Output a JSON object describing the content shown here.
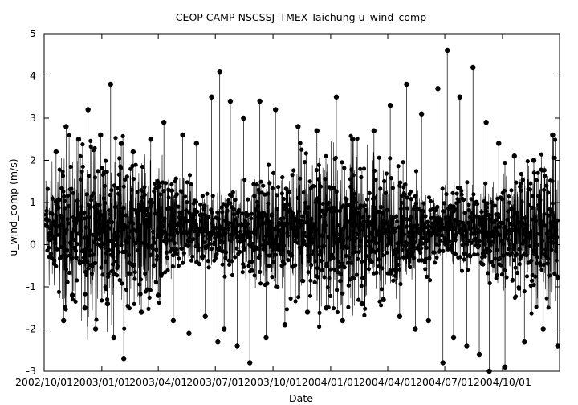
{
  "chart_data": {
    "type": "line",
    "title": "CEOP CAMP-NSCSSJ_TMEX Taichung  u_wind_comp",
    "xlabel": "Date",
    "ylabel": "u_wind_comp (m/s)",
    "ylim": [
      -3,
      5
    ],
    "xlim": [
      "2002-10-01",
      "2004-12-31"
    ],
    "y_ticks": [
      "-3",
      "-2",
      "-1",
      "0",
      "1",
      "2",
      "3",
      "4",
      "5"
    ],
    "x_ticks": [
      {
        "date": "2002-10-01",
        "label": "2002/10/01"
      },
      {
        "date": "2003-01-01",
        "label": "2003/01/01"
      },
      {
        "date": "2003-04-01",
        "label": "2003/04/01"
      },
      {
        "date": "2003-07-01",
        "label": "2003/07/01"
      },
      {
        "date": "2003-10-01",
        "label": "2003/10/01"
      },
      {
        "date": "2004-01-01",
        "label": "2004/01/01"
      },
      {
        "date": "2004-04-01",
        "label": "2004/04/01"
      },
      {
        "date": "2004-07-01",
        "label": "2004/07/01"
      },
      {
        "date": "2004-10-01",
        "label": "2004/10/01"
      }
    ],
    "grid": false,
    "marker": "filled-circle",
    "series": [
      {
        "color": "#000000",
        "points": [
          [
            "2002-10-05",
            0.6
          ],
          [
            "2002-10-20",
            2.2
          ],
          [
            "2002-11-01",
            -1.8
          ],
          [
            "2002-11-05",
            2.8
          ],
          [
            "2002-11-15",
            -1.2
          ],
          [
            "2002-11-25",
            2.5
          ],
          [
            "2002-12-05",
            -1.5
          ],
          [
            "2002-12-10",
            3.2
          ],
          [
            "2002-12-22",
            -2.0
          ],
          [
            "2002-12-30",
            2.6
          ],
          [
            "2003-01-10",
            -1.4
          ],
          [
            "2003-01-15",
            3.8
          ],
          [
            "2003-01-20",
            -2.2
          ],
          [
            "2003-02-01",
            2.4
          ],
          [
            "2003-02-05",
            -2.7
          ],
          [
            "2003-02-20",
            2.2
          ],
          [
            "2003-03-05",
            -1.6
          ],
          [
            "2003-03-20",
            2.5
          ],
          [
            "2003-04-01",
            -1.2
          ],
          [
            "2003-04-10",
            2.9
          ],
          [
            "2003-04-25",
            -1.8
          ],
          [
            "2003-05-10",
            2.6
          ],
          [
            "2003-05-20",
            -2.1
          ],
          [
            "2003-06-01",
            2.4
          ],
          [
            "2003-06-15",
            -1.7
          ],
          [
            "2003-06-25",
            3.5
          ],
          [
            "2003-07-05",
            -2.3
          ],
          [
            "2003-07-08",
            4.1
          ],
          [
            "2003-07-15",
            -2.0
          ],
          [
            "2003-07-25",
            3.4
          ],
          [
            "2003-08-05",
            -2.4
          ],
          [
            "2003-08-15",
            3.0
          ],
          [
            "2003-08-25",
            -2.8
          ],
          [
            "2003-09-10",
            3.4
          ],
          [
            "2003-09-20",
            -2.2
          ],
          [
            "2003-10-05",
            3.2
          ],
          [
            "2003-10-20",
            -1.9
          ],
          [
            "2003-11-10",
            2.8
          ],
          [
            "2003-11-25",
            -1.6
          ],
          [
            "2003-12-10",
            2.7
          ],
          [
            "2003-12-25",
            -1.5
          ],
          [
            "2004-01-10",
            3.5
          ],
          [
            "2004-01-20",
            -1.8
          ],
          [
            "2004-02-05",
            2.5
          ],
          [
            "2004-02-20",
            -1.4
          ],
          [
            "2004-03-10",
            2.7
          ],
          [
            "2004-03-25",
            -1.3
          ],
          [
            "2004-04-05",
            3.3
          ],
          [
            "2004-04-20",
            -1.7
          ],
          [
            "2004-05-01",
            3.8
          ],
          [
            "2004-05-15",
            -2.0
          ],
          [
            "2004-05-25",
            3.1
          ],
          [
            "2004-06-05",
            -1.8
          ],
          [
            "2004-06-20",
            3.7
          ],
          [
            "2004-06-28",
            -2.8
          ],
          [
            "2004-07-05",
            4.6
          ],
          [
            "2004-07-15",
            -2.2
          ],
          [
            "2004-07-25",
            3.5
          ],
          [
            "2004-08-05",
            -2.4
          ],
          [
            "2004-08-15",
            4.2
          ],
          [
            "2004-08-25",
            -2.6
          ],
          [
            "2004-09-05",
            2.9
          ],
          [
            "2004-09-10",
            -3.0
          ],
          [
            "2004-09-25",
            2.4
          ],
          [
            "2004-10-05",
            -2.9
          ],
          [
            "2004-10-20",
            2.1
          ],
          [
            "2004-11-05",
            -2.3
          ],
          [
            "2004-11-20",
            2.0
          ],
          [
            "2004-12-05",
            -2.0
          ],
          [
            "2004-12-20",
            2.6
          ],
          [
            "2004-12-28",
            -2.4
          ]
        ]
      }
    ]
  }
}
